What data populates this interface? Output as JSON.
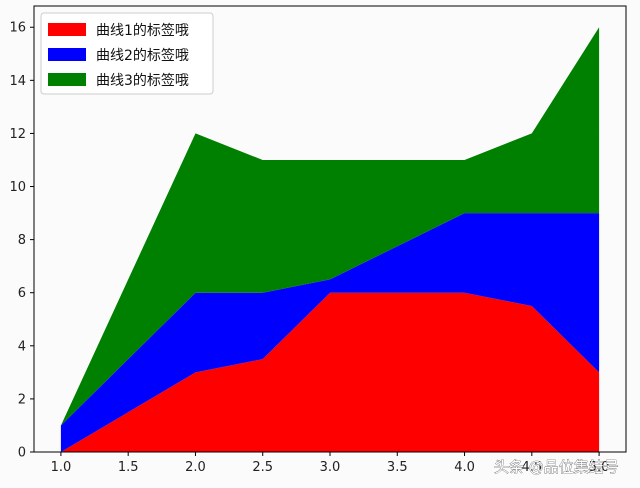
{
  "chart_data": {
    "type": "area",
    "stacked": true,
    "x": [
      1.0,
      2.0,
      2.5,
      3.0,
      4.0,
      4.5,
      5.0
    ],
    "series": [
      {
        "name": "曲线1的标签哦",
        "color": "#ff0000",
        "values": [
          0,
          3,
          3.5,
          6,
          6,
          5.5,
          3
        ]
      },
      {
        "name": "曲线2的标签哦",
        "color": "#0000ff",
        "values": [
          1,
          3,
          2.5,
          0.5,
          3,
          3.5,
          6
        ]
      },
      {
        "name": "曲线3的标签哦",
        "color": "#008000",
        "values": [
          0,
          6,
          5,
          4.5,
          2,
          3,
          7
        ]
      }
    ],
    "xticks": [
      "1.0",
      "1.5",
      "2.0",
      "2.5",
      "3.0",
      "3.5",
      "4.0",
      "4.5",
      "5.0"
    ],
    "yticks": [
      "0",
      "2",
      "4",
      "6",
      "8",
      "10",
      "12",
      "14",
      "16"
    ],
    "xlim": [
      0.8,
      5.2
    ],
    "ylim": [
      0,
      16.8
    ],
    "legend_location": "upper left",
    "grid": false
  },
  "watermark": "头条 @品位集结号"
}
